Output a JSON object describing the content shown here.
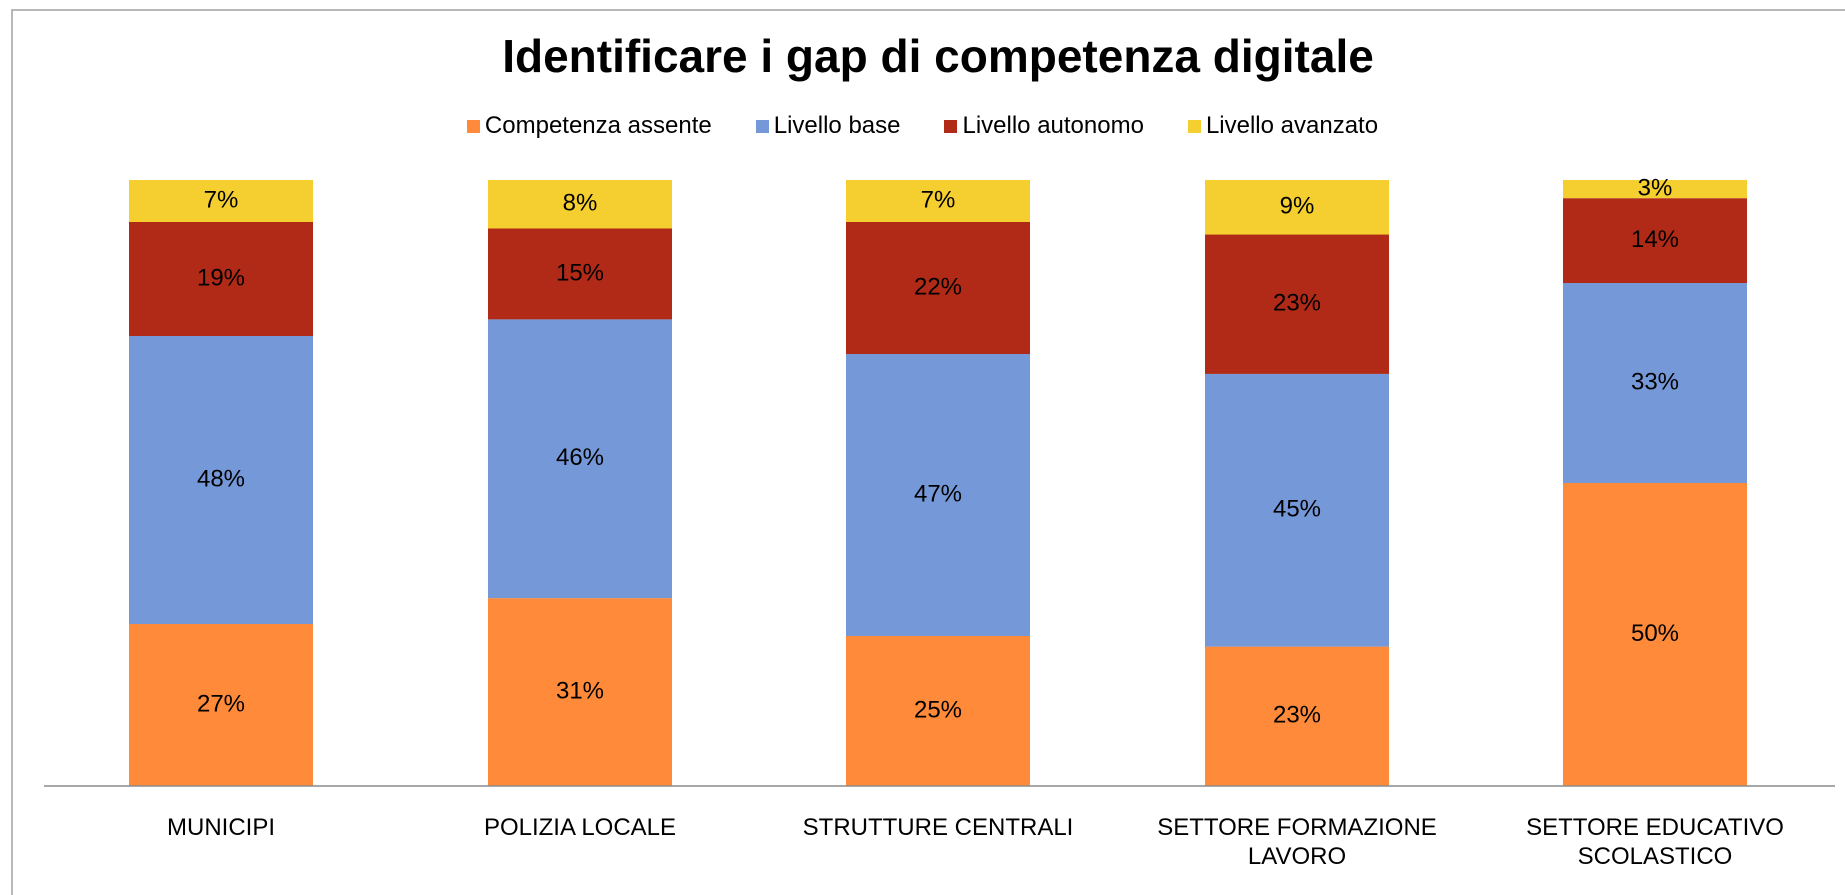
{
  "chart_data": {
    "type": "bar",
    "stacking": "percent",
    "title": "Identificare i gap di competenza digitale",
    "categories": [
      "MUNICIPI",
      "POLIZIA LOCALE",
      "STRUTTURE CENTRALI",
      "SETTORE FORMAZIONE LAVORO",
      "SETTORE EDUCATIVO SCOLASTICO"
    ],
    "series": [
      {
        "name": "Competenza assente",
        "color": "#ff8a3a",
        "values": [
          27,
          31,
          25,
          23,
          50
        ],
        "value_labels": [
          "27%",
          "31%",
          "25%",
          "23%",
          "50%"
        ]
      },
      {
        "name": "Livello base",
        "color": "#7598d8",
        "values": [
          48,
          46,
          47,
          45,
          33
        ],
        "value_labels": [
          "48%",
          "46%",
          "47%",
          "45%",
          "33%"
        ]
      },
      {
        "name": "Livello autonomo",
        "color": "#b02a17",
        "values": [
          19,
          15,
          22,
          23,
          14
        ],
        "value_labels": [
          "19%",
          "15%",
          "22%",
          "23%",
          "14%"
        ]
      },
      {
        "name": "Livello avanzato",
        "color": "#f5cf2f",
        "values": [
          7,
          8,
          7,
          9,
          3
        ],
        "value_labels": [
          "7%",
          "8%",
          "7%",
          "9%",
          "3%"
        ]
      }
    ],
    "legend": "top"
  }
}
